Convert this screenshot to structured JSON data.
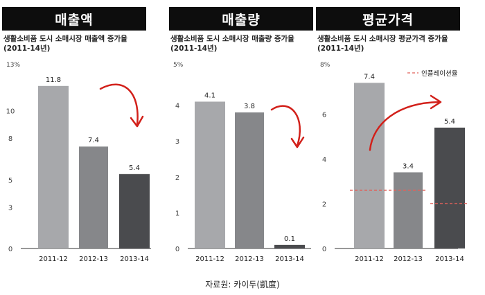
{
  "source": "자료원: 카이두(凱度)",
  "colors": {
    "bar_light": "#a7a8ab",
    "bar_mid": "#86878a",
    "bar_dark": "#4a4b4e",
    "arrow": "#d2201a",
    "inflation": "#e0605a",
    "axis": "#333333"
  },
  "chart_data": [
    {
      "type": "bar",
      "header": "매출액",
      "title": "생활소비품 도시 소매시장 매출액 증가율",
      "subtitle": "(2011-14년)",
      "categories": [
        "2011-12",
        "2012-13",
        "2013-14"
      ],
      "values": [
        11.8,
        7.4,
        5.4
      ],
      "data_labels": [
        "11.8",
        "7.4",
        "5.4"
      ],
      "ylim": [
        0,
        13
      ],
      "ticks": [
        0,
        3,
        5,
        8,
        10
      ],
      "tick_labels": [
        "0",
        "3",
        "5",
        "8",
        "10"
      ],
      "top_label": "13%",
      "arrow": "down"
    },
    {
      "type": "bar",
      "header": "매출량",
      "title": "생활소비품 도시 소매시장 매출량 증가율",
      "subtitle": "(2011-14년)",
      "categories": [
        "2011-12",
        "2012-13",
        "2013-14"
      ],
      "values": [
        4.1,
        3.8,
        0.1
      ],
      "data_labels": [
        "4.1",
        "3.8",
        "0.1"
      ],
      "ylim": [
        0,
        5
      ],
      "ticks": [
        0,
        1,
        2,
        3,
        4
      ],
      "tick_labels": [
        "0",
        "1",
        "2",
        "3",
        "4"
      ],
      "top_label": "5%",
      "arrow": "down"
    },
    {
      "type": "bar",
      "header": "평균가격",
      "title": "생활소비품 도시 소매시장 평균가격 증가율",
      "subtitle": "(2011-14년)",
      "categories": [
        "2011-12",
        "2012-13",
        "2013-14"
      ],
      "values": [
        7.4,
        3.4,
        5.4
      ],
      "data_labels": [
        "7.4",
        "3.4",
        "5.4"
      ],
      "ylim": [
        0,
        8
      ],
      "ticks": [
        0,
        2,
        4,
        6
      ],
      "tick_labels": [
        "0",
        "2",
        "4",
        "6"
      ],
      "top_label": "8%",
      "arrow": "up",
      "legend": "인플레이션율",
      "inflation_segments": [
        {
          "from": 0,
          "to": 1,
          "value": 2.6
        },
        {
          "from": 2,
          "to": 2,
          "value": 2.0
        }
      ]
    }
  ]
}
